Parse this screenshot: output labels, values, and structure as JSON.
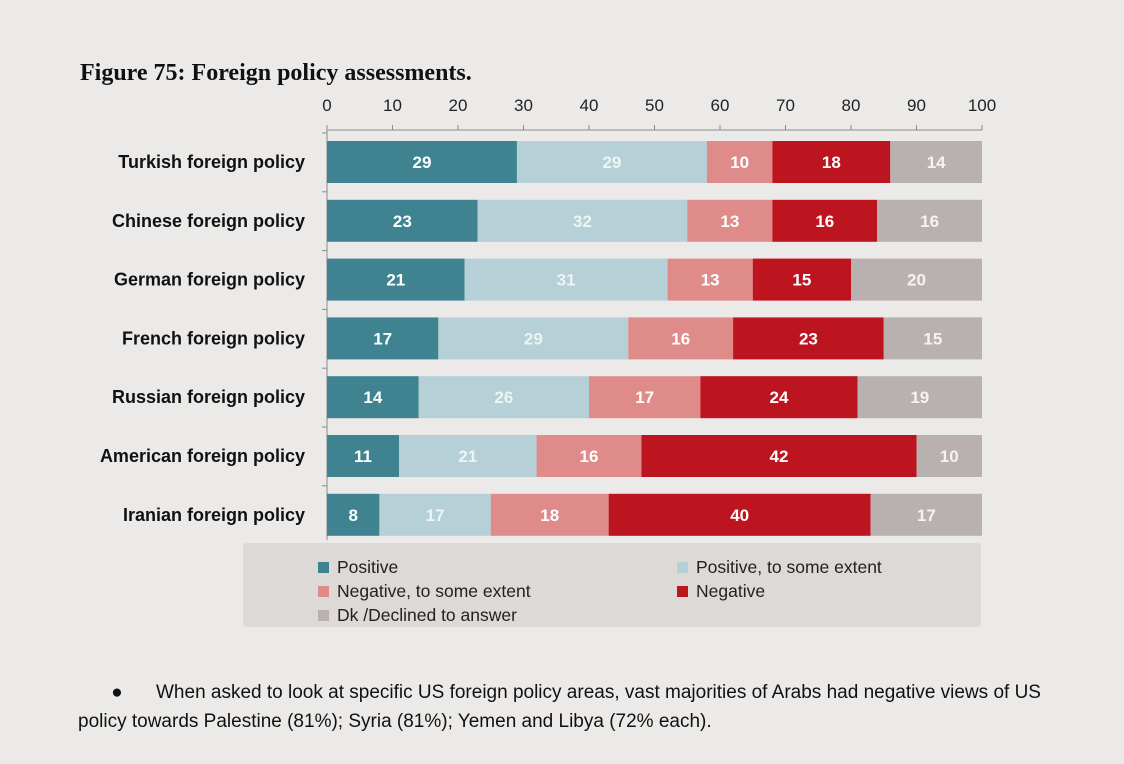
{
  "figure_title": "Figure 75: Foreign policy assessments.",
  "chart_data": {
    "type": "bar",
    "orientation": "horizontal",
    "stacked": true,
    "title": "Figure 75: Foreign policy assessments.",
    "xlim": [
      0,
      100
    ],
    "x_ticks": [
      0,
      10,
      20,
      30,
      40,
      50,
      60,
      70,
      80,
      90,
      100
    ],
    "axis_position": "top",
    "grid": false,
    "categories": [
      "Turkish foreign policy",
      "Chinese foreign policy",
      "German foreign policy",
      "French foreign policy",
      "Russian foreign policy",
      "American foreign policy",
      "Iranian foreign policy"
    ],
    "series": [
      {
        "name": "Positive",
        "color": "#3f8391",
        "label_color": "#ffffff",
        "values": [
          29,
          23,
          21,
          17,
          14,
          11,
          8
        ]
      },
      {
        "name": "Positive, to some extent",
        "color": "#b5d0d6",
        "label_color": "#eef4f5",
        "values": [
          29,
          32,
          31,
          29,
          26,
          21,
          17
        ]
      },
      {
        "name": "Negative, to some extent",
        "color": "#de8b8a",
        "label_color": "#ffffff",
        "values": [
          10,
          13,
          13,
          16,
          17,
          16,
          18
        ]
      },
      {
        "name": "Negative",
        "color": "#bd1520",
        "label_color": "#ffffff",
        "values": [
          18,
          16,
          15,
          23,
          24,
          42,
          40
        ]
      },
      {
        "name": "Dk /Declined to answer",
        "color": "#b8b1af",
        "label_color": "#f5f3f2",
        "values": [
          14,
          16,
          20,
          15,
          19,
          10,
          17
        ]
      }
    ],
    "legend_position": "bottom"
  },
  "bullet_symbol": "●",
  "bullet_text": "When asked to look at specific US foreign policy areas, vast majorities of Arabs had negative views of US policy towards Palestine (81%); Syria (81%); Yemen and Libya (72% each)."
}
